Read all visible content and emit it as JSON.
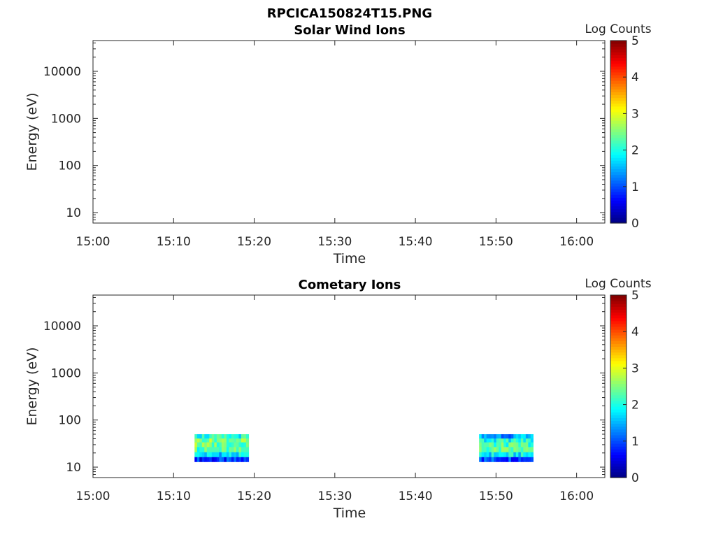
{
  "figure": {
    "title": "RPCICA150824T15.PNG"
  },
  "chart_data": [
    {
      "type": "heatmap",
      "title": "Solar Wind Ions",
      "xlabel": "Time",
      "ylabel": "Energy (eV)",
      "x_ticks": [
        "15:00",
        "15:10",
        "15:20",
        "15:30",
        "15:40",
        "15:50",
        "16:00"
      ],
      "xlim_minutes": [
        0,
        63.5
      ],
      "y_scale": "log",
      "y_ticks": [
        10,
        100,
        1000,
        10000
      ],
      "y_tick_labels": [
        "10",
        "100",
        "1000",
        "10000"
      ],
      "ylim": [
        6,
        45000
      ],
      "colorbar": {
        "label": "Log Counts",
        "range": [
          0,
          5
        ],
        "ticks": [
          "0",
          "1",
          "2",
          "3",
          "4",
          "5"
        ],
        "colormap": "jet"
      },
      "blocks": []
    },
    {
      "type": "heatmap",
      "title": "Cometary Ions",
      "xlabel": "Time",
      "ylabel": "Energy (eV)",
      "x_ticks": [
        "15:00",
        "15:10",
        "15:20",
        "15:30",
        "15:40",
        "15:50",
        "16:00"
      ],
      "xlim_minutes": [
        0,
        63.5
      ],
      "y_scale": "log",
      "y_ticks": [
        10,
        100,
        1000,
        10000
      ],
      "y_tick_labels": [
        "10",
        "100",
        "1000",
        "10000"
      ],
      "ylim": [
        6,
        45000
      ],
      "colorbar": {
        "label": "Log Counts",
        "range": [
          0,
          5
        ],
        "ticks": [
          "0",
          "1",
          "2",
          "3",
          "4",
          "5"
        ],
        "colormap": "jet"
      },
      "blocks": [
        {
          "t_start_min": 12.6,
          "t_end_min": 19.3,
          "energy_edges": [
            13,
            16.5,
            21,
            27,
            34,
            41,
            50
          ],
          "columns": 22,
          "mean_log_counts": [
            0.8,
            1.7,
            2.2,
            2.4,
            2.5,
            2.0
          ],
          "first_column_log_counts": [
            0.6,
            2.0,
            2.7,
            2.9,
            2.6,
            2.2
          ]
        },
        {
          "t_start_min": 47.9,
          "t_end_min": 54.6,
          "energy_edges": [
            13,
            16.5,
            21,
            27,
            34,
            41,
            50
          ],
          "columns": 22,
          "mean_log_counts": [
            1.0,
            1.8,
            2.3,
            2.2,
            2.0,
            1.4
          ],
          "first_column_log_counts": [
            1.2,
            2.1,
            2.6,
            2.5,
            2.3,
            1.8
          ]
        }
      ]
    }
  ]
}
